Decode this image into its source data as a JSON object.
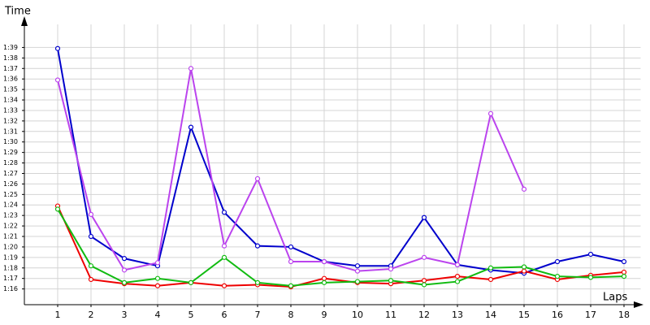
{
  "chart_data": {
    "type": "line",
    "y_label": "Time",
    "x_label": "Laps",
    "x": [
      1,
      2,
      3,
      4,
      5,
      6,
      7,
      8,
      9,
      10,
      11,
      12,
      13,
      14,
      15,
      16,
      17,
      18
    ],
    "xlim": [
      0,
      18.5
    ],
    "xticks": [
      1,
      2,
      3,
      4,
      5,
      6,
      7,
      8,
      9,
      10,
      11,
      12,
      13,
      14,
      15,
      16,
      17,
      18
    ],
    "ylim": [
      74.5,
      101.2
    ],
    "yticks": [
      {
        "value": 76,
        "label": "1:16"
      },
      {
        "value": 77,
        "label": "1:17"
      },
      {
        "value": 78,
        "label": "1:18"
      },
      {
        "value": 79,
        "label": "1:19"
      },
      {
        "value": 80,
        "label": "1:20"
      },
      {
        "value": 81,
        "label": "1:21"
      },
      {
        "value": 82,
        "label": "1:22"
      },
      {
        "value": 83,
        "label": "1:23"
      },
      {
        "value": 84,
        "label": "1:24"
      },
      {
        "value": 85,
        "label": "1:25"
      },
      {
        "value": 86,
        "label": "1:26"
      },
      {
        "value": 87,
        "label": "1:27"
      },
      {
        "value": 88,
        "label": "1:28"
      },
      {
        "value": 89,
        "label": "1:29"
      },
      {
        "value": 90,
        "label": "1:30"
      },
      {
        "value": 91,
        "label": "1:31"
      },
      {
        "value": 92,
        "label": "1:32"
      },
      {
        "value": 93,
        "label": "1:33"
      },
      {
        "value": 94,
        "label": "1:34"
      },
      {
        "value": 95,
        "label": "1:35"
      },
      {
        "value": 96,
        "label": "1:36"
      },
      {
        "value": 97,
        "label": "1:37"
      },
      {
        "value": 98,
        "label": "1:38"
      },
      {
        "value": 99,
        "label": "1:39"
      }
    ],
    "grid": true,
    "series": [
      {
        "color": "#0000cc",
        "values": [
          98.9,
          81.0,
          78.9,
          78.2,
          91.4,
          83.3,
          80.1,
          80.0,
          78.6,
          78.2,
          78.2,
          82.8,
          78.3,
          77.8,
          77.5,
          78.6,
          79.3,
          78.6
        ]
      },
      {
        "color": "#bb44ee",
        "values": [
          95.9,
          83.1,
          77.8,
          78.5,
          97.0,
          80.1,
          86.5,
          78.6,
          78.6,
          77.7,
          77.9,
          79.0,
          78.3,
          92.7,
          85.5,
          null,
          null,
          null
        ]
      },
      {
        "color": "#ee0000",
        "values": [
          83.9,
          76.9,
          76.5,
          76.3,
          76.6,
          76.3,
          76.4,
          76.2,
          77.0,
          76.6,
          76.5,
          76.8,
          77.2,
          76.9,
          77.7,
          76.9,
          77.3,
          77.6
        ]
      },
      {
        "color": "#11bb11",
        "values": [
          83.6,
          78.2,
          76.6,
          77.0,
          76.6,
          79.0,
          76.6,
          76.3,
          76.6,
          76.7,
          76.8,
          76.4,
          76.7,
          78.0,
          78.1,
          77.2,
          77.1,
          77.2
        ]
      }
    ]
  }
}
